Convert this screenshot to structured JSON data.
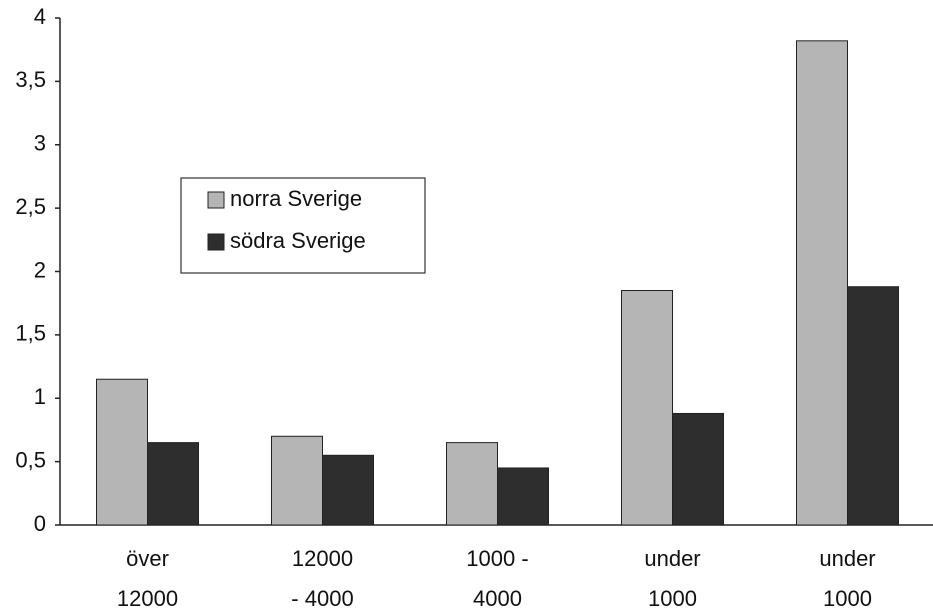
{
  "chart_data": {
    "type": "bar",
    "categories": [
      [
        "över",
        "12000"
      ],
      [
        "12000",
        "- 4000"
      ],
      [
        "1000 -",
        "4000"
      ],
      [
        "under",
        "1000"
      ],
      [
        "under",
        "1000"
      ]
    ],
    "series": [
      {
        "name": "norra Sverige",
        "color": "#b5b5b5",
        "values": [
          1.15,
          0.7,
          0.65,
          1.85,
          3.82
        ]
      },
      {
        "name": "södra Sverige",
        "color": "#2e2e2e",
        "values": [
          0.65,
          0.55,
          0.45,
          0.88,
          1.88
        ]
      }
    ],
    "ylim": [
      0,
      4
    ],
    "yticks": [
      0,
      {
        "value": 0.5,
        "label": "0,5"
      },
      1,
      {
        "value": 1.5,
        "label": "1,5"
      },
      2,
      {
        "value": 2.5,
        "label": "2,5"
      },
      3,
      {
        "value": 3.5,
        "label": "3,5"
      },
      4
    ],
    "grid": false
  }
}
